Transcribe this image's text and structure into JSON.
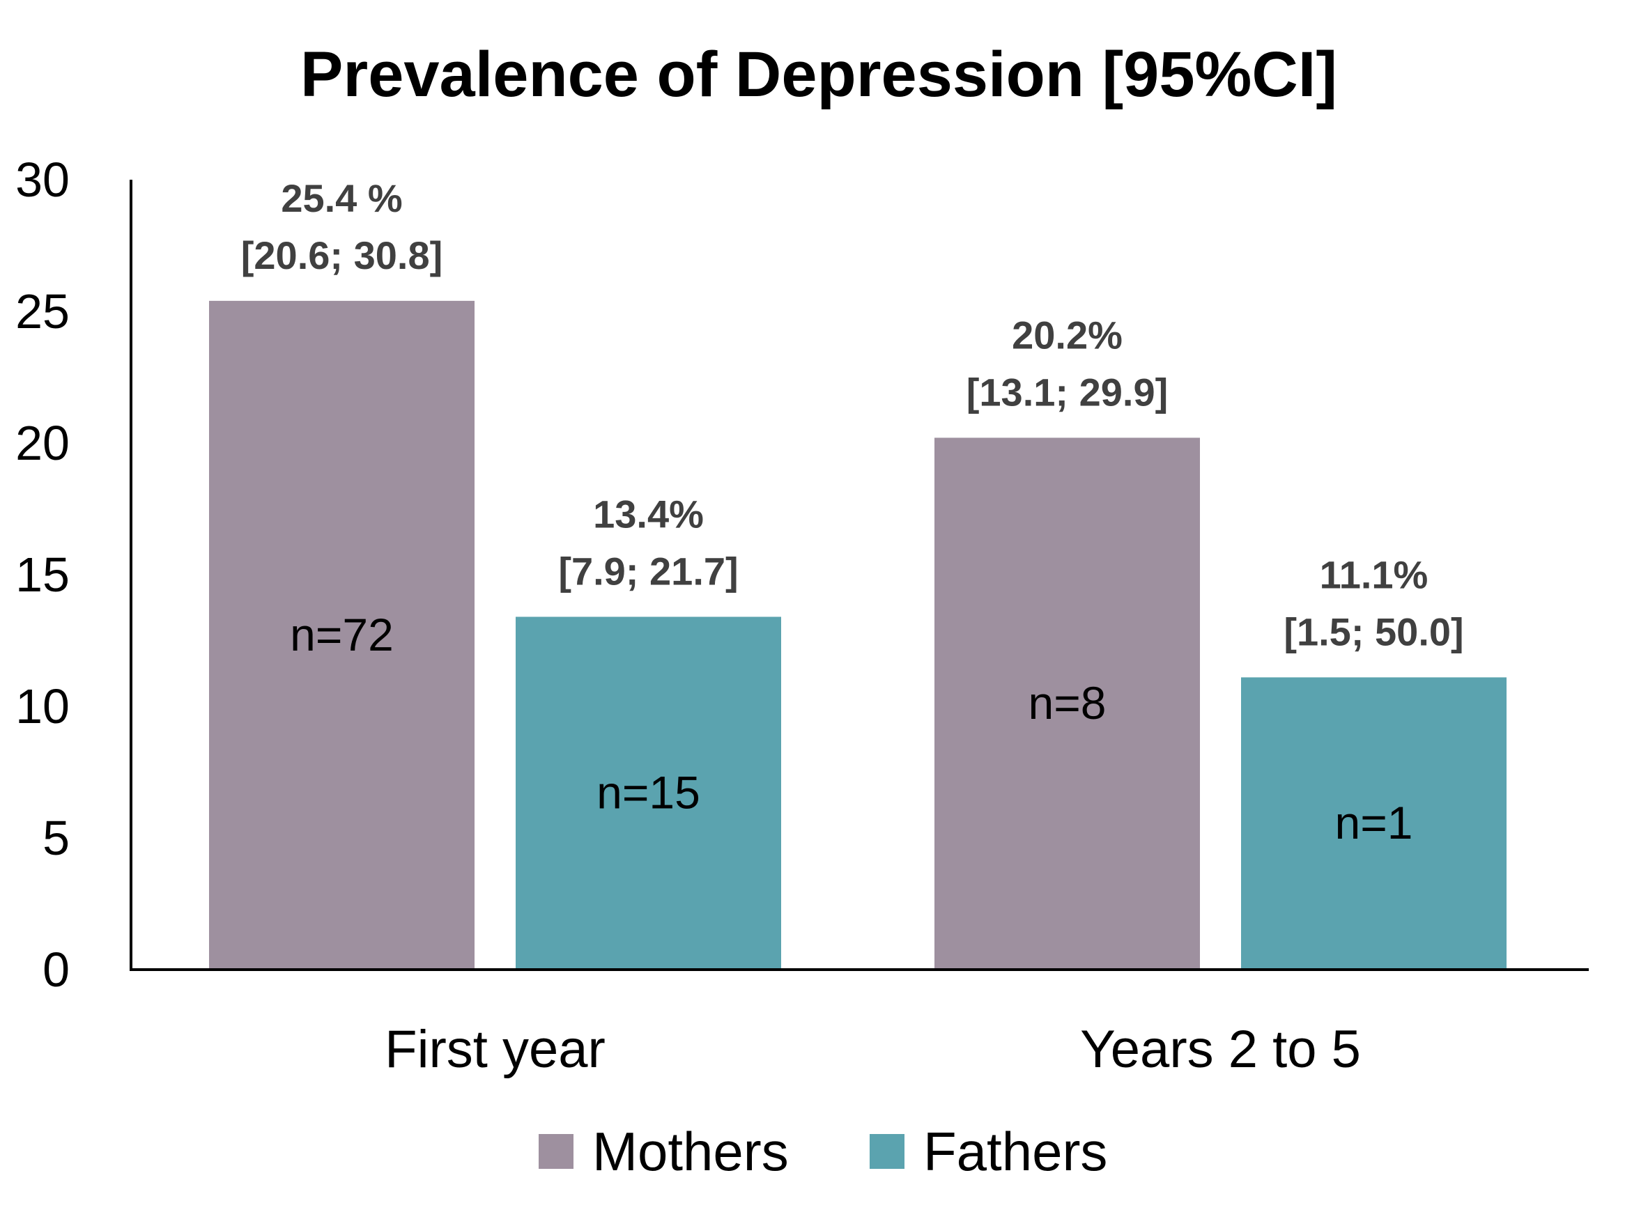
{
  "chart_data": {
    "type": "bar",
    "title": "Prevalence of Depression [95%CI]",
    "xlabel": "",
    "ylabel": "",
    "categories": [
      "First year",
      "Years 2 to 5"
    ],
    "ylim": [
      0,
      30
    ],
    "yticks": [
      "0",
      "5",
      "10",
      "15",
      "20",
      "25",
      "30"
    ],
    "grid": false,
    "legend_position": "bottom",
    "series": [
      {
        "name": "Mothers",
        "color": "#9e909f",
        "values": [
          25.4,
          20.2
        ],
        "value_labels": [
          "25.4 %",
          "20.2%"
        ],
        "ci_labels": [
          "[20.6; 30.8]",
          "[13.1; 29.9]"
        ],
        "n_labels": [
          "n=72",
          "n=8"
        ]
      },
      {
        "name": "Fathers",
        "color": "#5ba3af",
        "values": [
          13.4,
          11.1
        ],
        "value_labels": [
          "13.4%",
          "11.1%"
        ],
        "ci_labels": [
          "[7.9; 21.7]",
          "[1.5; 50.0]"
        ],
        "n_labels": [
          "n=15",
          "n=1"
        ]
      }
    ]
  }
}
